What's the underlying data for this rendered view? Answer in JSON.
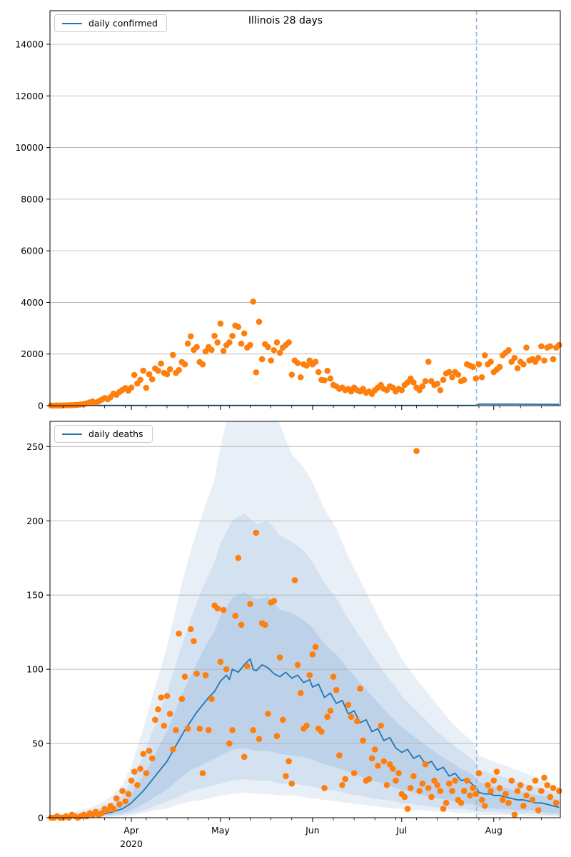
{
  "figure": {
    "title": "Illinois 28 days",
    "legend_top": "daily confirmed",
    "legend_bottom": "daily deaths",
    "colors": {
      "scatter": "#ff7f0e",
      "line": "#1f77b4",
      "vline": "#91b9d9",
      "grid": "#b0b0b0",
      "spine": "#000000",
      "bands": [
        "#e9eff7",
        "#d3e1f0",
        "#bdd2e8"
      ]
    },
    "x_axis": {
      "month_labels": [
        "Apr",
        "May",
        "Jun",
        "Jul",
        "Aug"
      ],
      "year_label": "2020",
      "month_offsets": [
        31,
        61,
        92,
        122,
        153
      ],
      "minor_tick_start": 1,
      "minor_tick_step": 7,
      "domain": [
        3.6,
        175.4
      ],
      "vline_offset": 147.2
    }
  },
  "chart_data": [
    {
      "type": "scatter",
      "title": "Illinois 28 days",
      "legend": "daily confirmed",
      "ylabel": "",
      "ylim": [
        0,
        15300
      ],
      "y_ticks": [
        0,
        2000,
        4000,
        6000,
        8000,
        10000,
        12000,
        14000
      ],
      "grid": true,
      "scatter": {
        "start_offset": 4,
        "values": [
          6,
          3,
          8,
          5,
          10,
          12,
          15,
          20,
          25,
          32,
          46,
          64,
          93,
          128,
          160,
          105,
          168,
          230,
          296,
          250,
          330,
          465,
          420,
          530,
          610,
          680,
          580,
          700,
          1190,
          860,
          1000,
          1355,
          690,
          1215,
          1020,
          1440,
          1355,
          1630,
          1270,
          1215,
          1410,
          1965,
          1270,
          1380,
          1690,
          1600,
          2405,
          2685,
          2160,
          2270,
          1690,
          1600,
          2100,
          2270,
          2160,
          2700,
          2450,
          3180,
          2120,
          2340,
          2450,
          2700,
          3100,
          3050,
          2400,
          2800,
          2250,
          2350,
          4030,
          1290,
          3250,
          1800,
          2380,
          2270,
          1750,
          2150,
          2450,
          2050,
          2250,
          2350,
          2450,
          1200,
          1750,
          1650,
          1100,
          1600,
          1550,
          1750,
          1600,
          1700,
          1300,
          1000,
          980,
          1350,
          1050,
          800,
          750,
          650,
          700,
          600,
          650,
          550,
          700,
          600,
          550,
          650,
          500,
          550,
          450,
          600,
          700,
          800,
          650,
          600,
          750,
          700,
          550,
          650,
          600,
          800,
          900,
          1050,
          900,
          700,
          600,
          750,
          950,
          1700,
          950,
          800,
          850,
          600,
          1000,
          1250,
          1300,
          1100,
          1300,
          1200,
          950,
          1000,
          1600,
          1550,
          1500,
          1050,
          1600,
          1100,
          1950,
          1600,
          1700,
          1300,
          1400,
          1500,
          1950,
          2050,
          2150,
          1700,
          1850,
          1450,
          1700,
          1600,
          2250,
          1750,
          1800,
          1700,
          1850,
          2300,
          1750,
          2250,
          2300,
          1800,
          2250,
          2350
        ]
      },
      "line": [
        [
          4,
          8
        ],
        [
          100,
          8
        ],
        [
          147,
          10
        ],
        [
          148,
          60
        ],
        [
          162,
          57
        ],
        [
          175,
          50
        ]
      ]
    },
    {
      "type": "scatter",
      "legend": "daily deaths",
      "ylabel": "",
      "ylim": [
        0,
        267
      ],
      "y_ticks": [
        0,
        50,
        100,
        150,
        200,
        250
      ],
      "grid": true,
      "scatter": {
        "start_offset": 4,
        "values": [
          0,
          0,
          1,
          0,
          0,
          1,
          0,
          2,
          1,
          0,
          1,
          2,
          1,
          3,
          2,
          4,
          2,
          3,
          6,
          5,
          8,
          6,
          13,
          9,
          18,
          11,
          16,
          25,
          31,
          22,
          33,
          43,
          30,
          45,
          40,
          66,
          73,
          81,
          62,
          82,
          70,
          46,
          59,
          124,
          80,
          95,
          60,
          127,
          119,
          97,
          60,
          30,
          96,
          59,
          80,
          143,
          141,
          105,
          140,
          100,
          50,
          59,
          136,
          175,
          130,
          41,
          102,
          144,
          59,
          192,
          53,
          131,
          130,
          70,
          145,
          146,
          55,
          108,
          66,
          28,
          38,
          23,
          160,
          103,
          84,
          60,
          62,
          96,
          110,
          115,
          60,
          58,
          20,
          68,
          72,
          95,
          86,
          42,
          22,
          26,
          76,
          68,
          30,
          65,
          87,
          52,
          25,
          26,
          40,
          46,
          35,
          62,
          38,
          22,
          36,
          33,
          25,
          30,
          16,
          14,
          6,
          20,
          28,
          247,
          18,
          23,
          36,
          20,
          14,
          25,
          22,
          18,
          6,
          10,
          23,
          18,
          25,
          12,
          10,
          18,
          25,
          15,
          20,
          16,
          30,
          12,
          8,
          22,
          18,
          25,
          31,
          20,
          12,
          16,
          10,
          25,
          2,
          18,
          22,
          8,
          15,
          20,
          12,
          25,
          5,
          18,
          27,
          22,
          14,
          20,
          10,
          18
        ]
      },
      "line": [
        [
          4,
          0.2
        ],
        [
          6,
          0.3
        ],
        [
          8,
          0.4
        ],
        [
          10,
          0.6
        ],
        [
          12,
          0.8
        ],
        [
          14,
          1
        ],
        [
          16,
          1.2
        ],
        [
          18,
          1.6
        ],
        [
          20,
          2
        ],
        [
          22,
          2.8
        ],
        [
          24,
          3.5
        ],
        [
          26,
          4.8
        ],
        [
          28,
          6
        ],
        [
          30,
          8.5
        ],
        [
          31,
          10
        ],
        [
          33,
          14
        ],
        [
          35,
          18
        ],
        [
          37,
          23
        ],
        [
          39,
          28
        ],
        [
          41,
          33
        ],
        [
          43,
          38
        ],
        [
          45,
          45
        ],
        [
          47,
          52
        ],
        [
          49,
          59
        ],
        [
          51,
          65
        ],
        [
          53,
          71
        ],
        [
          55,
          76
        ],
        [
          57,
          81
        ],
        [
          59,
          85
        ],
        [
          61,
          92
        ],
        [
          63,
          96
        ],
        [
          64,
          93
        ],
        [
          65,
          100
        ],
        [
          67,
          98
        ],
        [
          69,
          103
        ],
        [
          71,
          107
        ],
        [
          72,
          100
        ],
        [
          73,
          99
        ],
        [
          75,
          103
        ],
        [
          77,
          101
        ],
        [
          79,
          97
        ],
        [
          81,
          95
        ],
        [
          83,
          98
        ],
        [
          85,
          94
        ],
        [
          87,
          96
        ],
        [
          89,
          91
        ],
        [
          91,
          93
        ],
        [
          92,
          88
        ],
        [
          94,
          90
        ],
        [
          96,
          81
        ],
        [
          98,
          84
        ],
        [
          100,
          77
        ],
        [
          102,
          79
        ],
        [
          104,
          70
        ],
        [
          106,
          72
        ],
        [
          108,
          64
        ],
        [
          110,
          66
        ],
        [
          112,
          58
        ],
        [
          114,
          60
        ],
        [
          116,
          52
        ],
        [
          118,
          54
        ],
        [
          120,
          47
        ],
        [
          122,
          44
        ],
        [
          124,
          46
        ],
        [
          126,
          40
        ],
        [
          128,
          42
        ],
        [
          130,
          36
        ],
        [
          132,
          38
        ],
        [
          134,
          32
        ],
        [
          136,
          34
        ],
        [
          138,
          28
        ],
        [
          140,
          30
        ],
        [
          142,
          25
        ],
        [
          144,
          26
        ],
        [
          146,
          22
        ],
        [
          147,
          21
        ],
        [
          148,
          17
        ],
        [
          150,
          16
        ],
        [
          152,
          16
        ],
        [
          153,
          15
        ],
        [
          155,
          15
        ],
        [
          157,
          14
        ],
        [
          159,
          13
        ],
        [
          161,
          12
        ],
        [
          163,
          12
        ],
        [
          165,
          11
        ],
        [
          167,
          10
        ],
        [
          169,
          10
        ],
        [
          171,
          9
        ],
        [
          173,
          8
        ],
        [
          175,
          7
        ]
      ],
      "bands": {
        "offsets": [
          4,
          8,
          12,
          16,
          20,
          24,
          28,
          31,
          35,
          39,
          43,
          47,
          51,
          55,
          59,
          61,
          65,
          69,
          73,
          77,
          81,
          85,
          89,
          92,
          96,
          100,
          104,
          108,
          112,
          116,
          120,
          122,
          126,
          130,
          134,
          138,
          142,
          146,
          148,
          150,
          153,
          157,
          161,
          165,
          169,
          173,
          175
        ],
        "levels": [
          {
            "lo": [
              0,
              0,
              0,
              0,
              0.3,
              0.6,
              1,
              1.5,
              3,
              5,
              6,
              9,
              11,
              12,
              14,
              15,
              16,
              17,
              16,
              16,
              15,
              15,
              14,
              13,
              12,
              11,
              10,
              9,
              8,
              7,
              6,
              6,
              5,
              5,
              4,
              4,
              3,
              3,
              2,
              2,
              2,
              2,
              2,
              1,
              1,
              1,
              1
            ],
            "hi": [
              2,
              2.5,
              4,
              6,
              9,
              14,
              22,
              35,
              60,
              88,
              115,
              150,
              180,
              205,
              228,
              250,
              285,
              295,
              280,
              285,
              265,
              245,
              236,
              226,
              208,
              195,
              176,
              160,
              144,
              128,
              115,
              107,
              96,
              86,
              76,
              66,
              58,
              51,
              42,
              40,
              38,
              35,
              32,
              29,
              26,
              22,
              21
            ]
          },
          {
            "lo": [
              0,
              0,
              0,
              0.2,
              0.6,
              1,
              2,
              3,
              5,
              8,
              11,
              14,
              18,
              20,
              22,
              23,
              25,
              26,
              25,
              25,
              23,
              23,
              22,
              21,
              19,
              18,
              16,
              15,
              13,
              12,
              11,
              10,
              9,
              8,
              7,
              6,
              6,
              5,
              4,
              4,
              4,
              3,
              3,
              3,
              2,
              2,
              2
            ],
            "hi": [
              1,
              1.5,
              2.5,
              4,
              6,
              9,
              15,
              24,
              42,
              63,
              84,
              110,
              134,
              155,
              172,
              185,
              200,
              205,
              198,
              200,
              190,
              186,
              180,
              172,
              158,
              148,
              134,
              122,
              110,
              98,
              88,
              82,
              74,
              66,
              58,
              51,
              45,
              39,
              32,
              31,
              29,
              27,
              24,
              22,
              20,
              17,
              16
            ]
          },
          {
            "lo": [
              0,
              0,
              0.2,
              0.5,
              1,
              2,
              3,
              5,
              9,
              14,
              19,
              26,
              32,
              36,
              40,
              42,
              46,
              47,
              45,
              45,
              43,
              42,
              41,
              39,
              36,
              34,
              31,
              28,
              25,
              23,
              20,
              19,
              17,
              15,
              13,
              12,
              10,
              9,
              7,
              7,
              6,
              6,
              5,
              5,
              4,
              3,
              3
            ],
            "hi": [
              0.5,
              1,
              1.5,
              2.5,
              4,
              6,
              10,
              16,
              28,
              43,
              58,
              78,
              96,
              112,
              126,
              136,
              148,
              152,
              147,
              149,
              140,
              138,
              133,
              128,
              117,
              110,
              100,
              91,
              82,
              73,
              65,
              61,
              55,
              49,
              43,
              38,
              33,
              29,
              24,
              23,
              21,
              20,
              18,
              16,
              15,
              13,
              12
            ]
          }
        ]
      }
    }
  ]
}
